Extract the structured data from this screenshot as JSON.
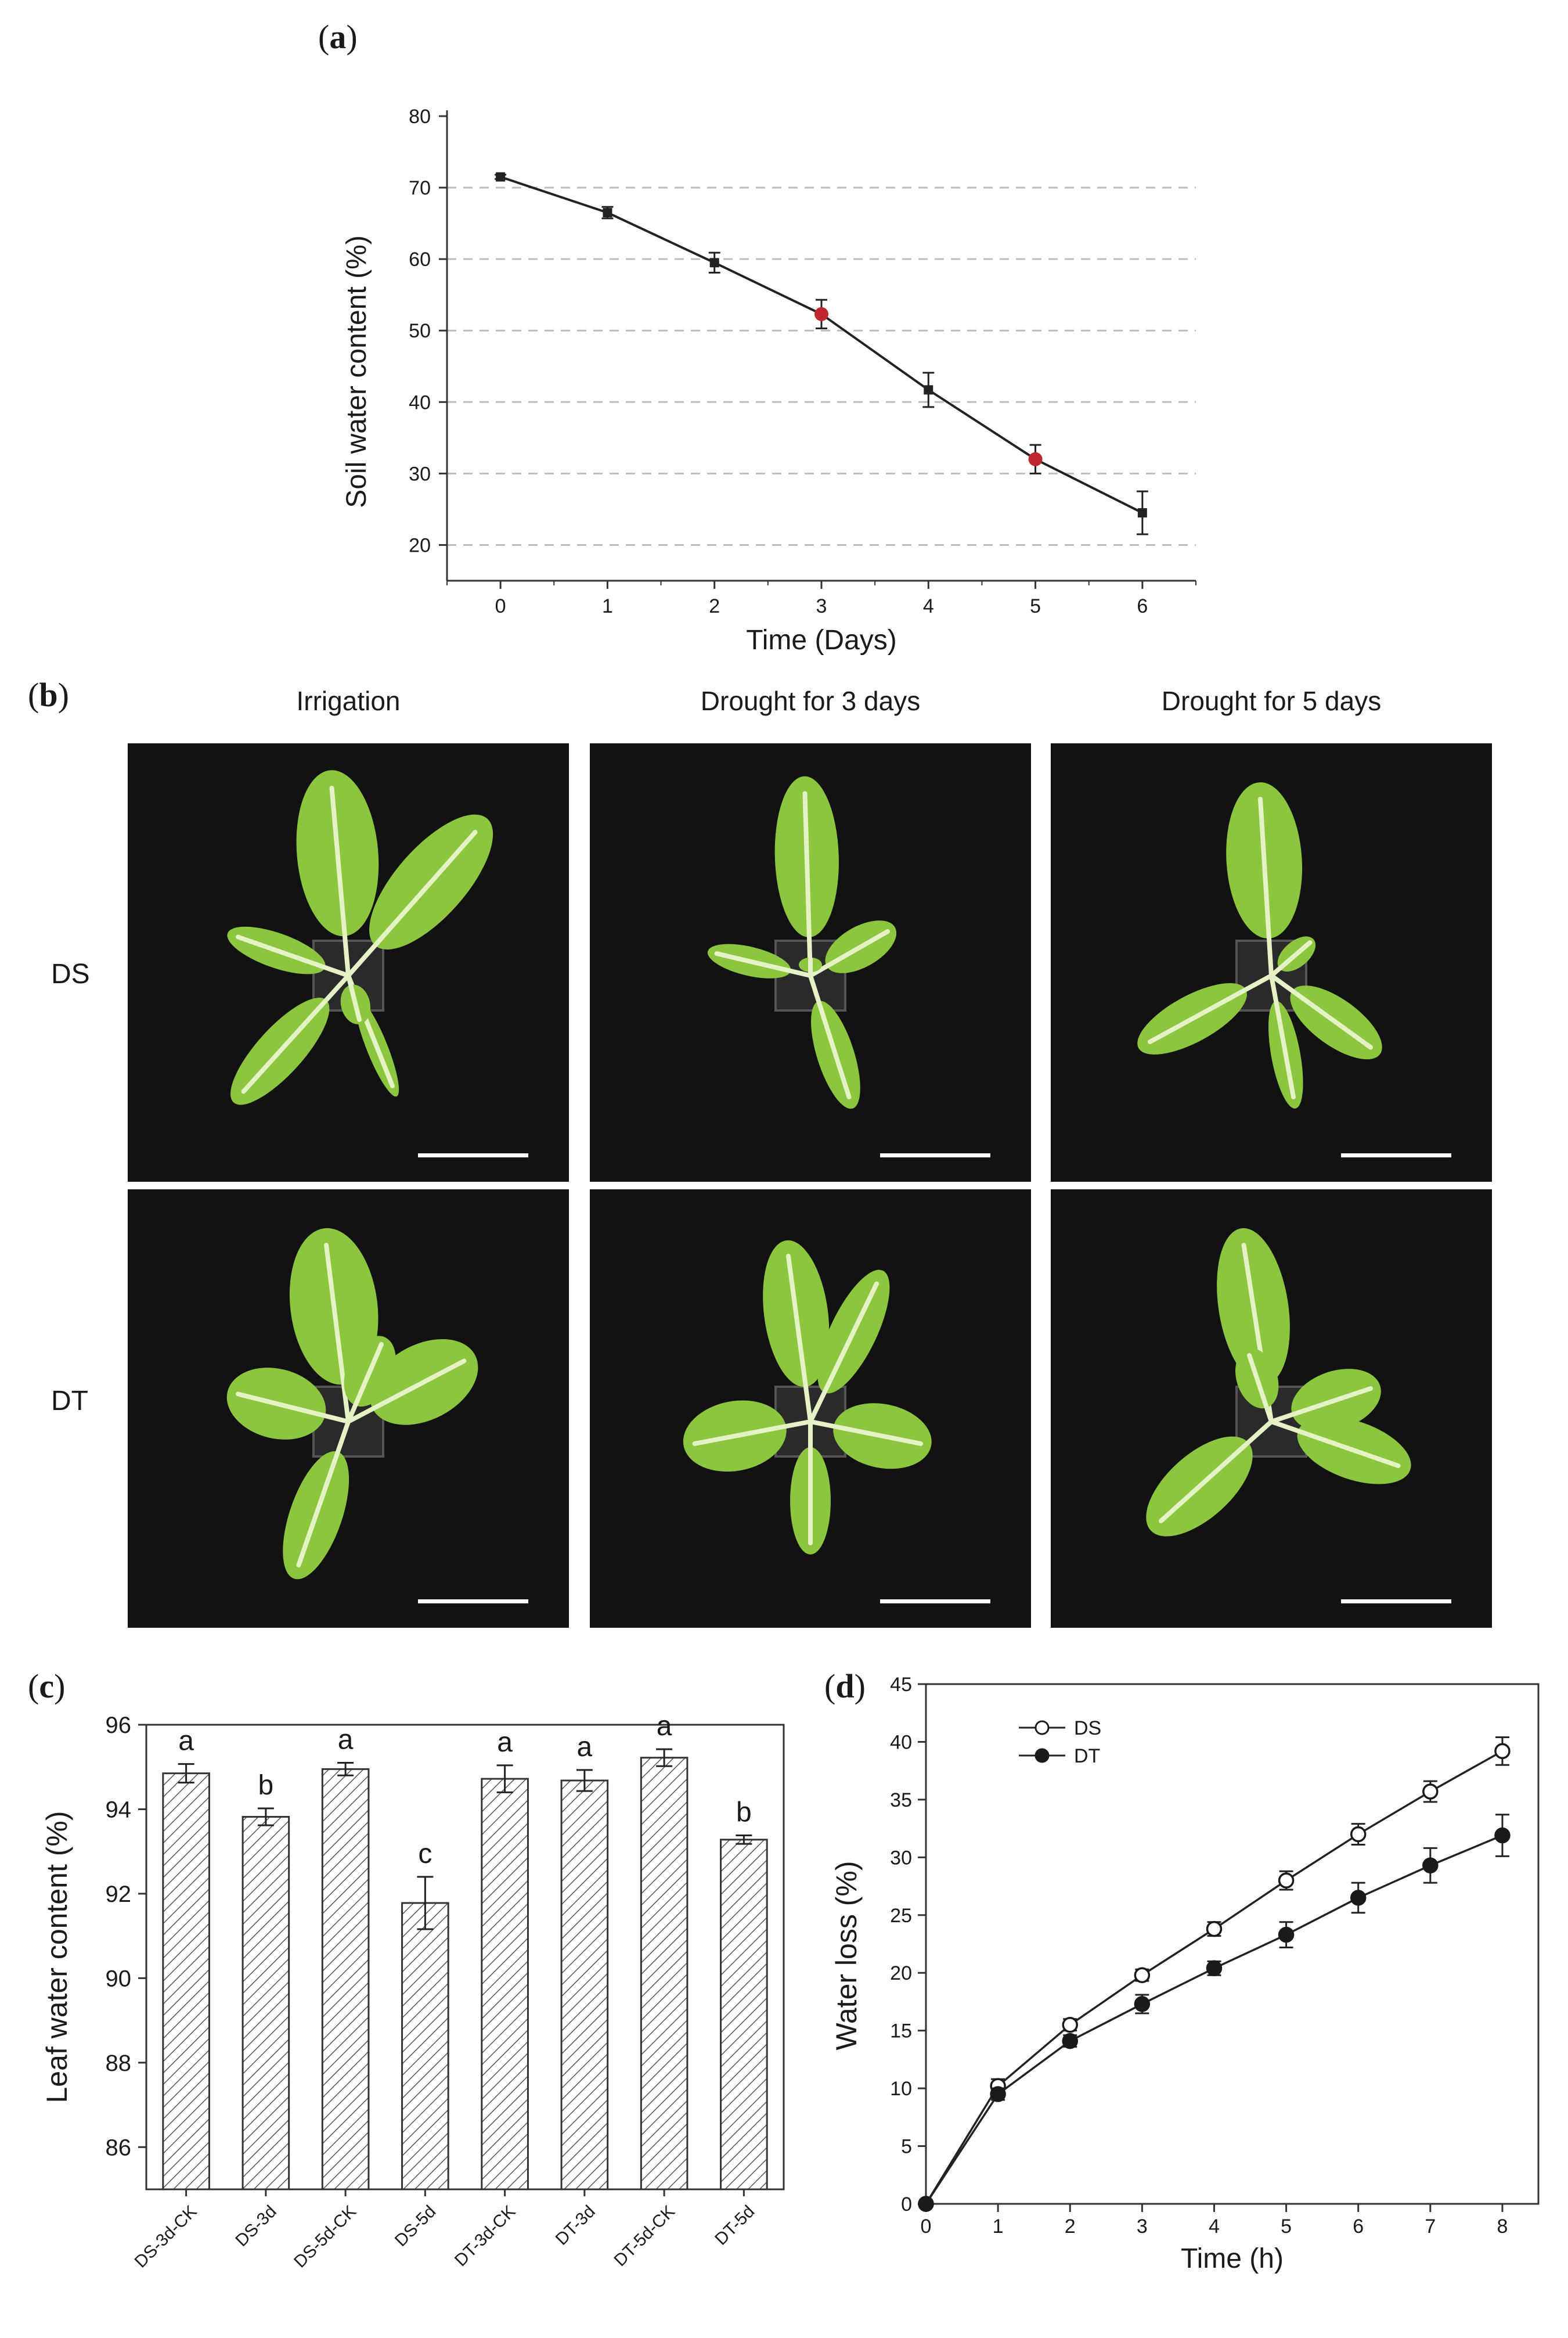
{
  "panels": {
    "a": "a",
    "b": "b",
    "c": "c",
    "d": "d"
  },
  "photos": {
    "columns": [
      "Irrigation",
      "Drought for 3 days",
      "Drought for 5 days"
    ],
    "rows": [
      "DS",
      "DT"
    ],
    "colors": {
      "background": "#121212",
      "leaf": "#8cc63f",
      "leaf_light": "#a9d65b",
      "vein": "#e4f2c6",
      "scale_bar": "#ffffff"
    }
  },
  "chart_data": [
    {
      "type": "line",
      "panel": "a",
      "xlabel": "Time (Days)",
      "ylabel": "Soil water content (%)",
      "xlim": [
        -0.5,
        6.5
      ],
      "ylim": [
        15,
        80
      ],
      "xticks": [
        0,
        1,
        2,
        3,
        4,
        5,
        6
      ],
      "yticks": [
        20,
        30,
        40,
        50,
        60,
        70,
        80
      ],
      "grid": "horizontal dashed",
      "x": [
        0,
        1,
        2,
        3,
        4,
        5,
        6
      ],
      "y": [
        71.5,
        66.5,
        59.5,
        52.3,
        41.7,
        32.0,
        24.5
      ],
      "error": [
        0.3,
        0.8,
        1.4,
        2.0,
        2.4,
        2.0,
        3.0
      ],
      "highlight_points": [
        3,
        5
      ],
      "highlight_color": "#c0272d",
      "line_color": "#222222"
    },
    {
      "type": "bar",
      "panel": "c",
      "ylabel": "Leaf water content (%)",
      "ylim": [
        85,
        96
      ],
      "yticks": [
        86,
        88,
        90,
        92,
        94,
        96
      ],
      "categories": [
        "DS-3d-CK",
        "DS-3d",
        "DS-5d-CK",
        "DS-5d",
        "DT-3d-CK",
        "DT-3d",
        "DT-5d-CK",
        "DT-5d"
      ],
      "values": [
        94.85,
        93.82,
        94.95,
        91.78,
        94.72,
        94.68,
        95.22,
        93.28
      ],
      "error": [
        0.22,
        0.2,
        0.15,
        0.62,
        0.32,
        0.25,
        0.2,
        0.1
      ],
      "labels": [
        "a",
        "b",
        "a",
        "c",
        "a",
        "a",
        "a",
        "b"
      ],
      "bar_fill": "hatched"
    },
    {
      "type": "line",
      "panel": "d",
      "xlabel": "Time (h)",
      "ylabel": "Water loss (%)",
      "xlim": [
        0,
        8.5
      ],
      "ylim": [
        0,
        45
      ],
      "xticks": [
        0,
        1,
        2,
        3,
        4,
        5,
        6,
        7,
        8
      ],
      "yticks": [
        0,
        5,
        10,
        15,
        20,
        25,
        30,
        35,
        40,
        45
      ],
      "legend": "top-left",
      "x": [
        0,
        1,
        2,
        3,
        4,
        5,
        6,
        7,
        8
      ],
      "series": [
        {
          "name": "DS",
          "marker": "open-circle",
          "values": [
            0,
            10.2,
            15.5,
            19.8,
            23.8,
            28.0,
            32.0,
            35.7,
            39.2
          ],
          "error": [
            0,
            0.6,
            0.5,
            0.5,
            0.6,
            0.8,
            0.9,
            0.9,
            1.2
          ]
        },
        {
          "name": "DT",
          "marker": "filled-circle",
          "values": [
            0,
            9.5,
            14.1,
            17.3,
            20.4,
            23.3,
            26.5,
            29.3,
            31.9
          ],
          "error": [
            0,
            0.5,
            0.5,
            0.8,
            0.6,
            1.1,
            1.3,
            1.5,
            1.8
          ]
        }
      ]
    }
  ]
}
